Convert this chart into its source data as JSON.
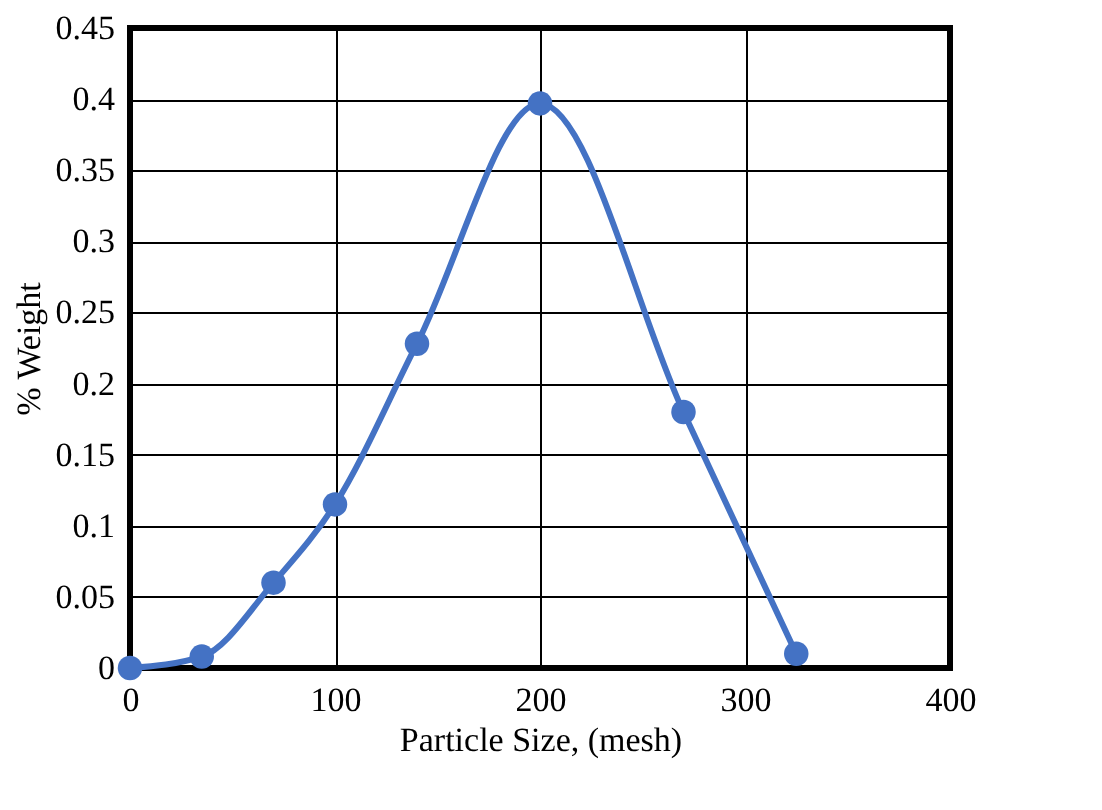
{
  "chart_data": {
    "type": "line",
    "xlabel": "Particle Size, (mesh)",
    "ylabel": "% Weight",
    "x": [
      0,
      35,
      70,
      100,
      140,
      200,
      270,
      325
    ],
    "series": [
      {
        "color": "#4472c4",
        "values": [
          0,
          0.008,
          0.06,
          0.115,
          0.228,
          0.397,
          0.18,
          0.01
        ]
      }
    ],
    "xlim": [
      0,
      400
    ],
    "xticks": [
      0,
      100,
      200,
      300,
      400
    ],
    "ylim": [
      0,
      0.45
    ],
    "yticks": [
      0,
      0.05,
      0.1,
      0.15,
      0.2,
      0.25,
      0.3,
      0.35,
      0.4,
      0.45
    ],
    "grid": true,
    "marker": "circle",
    "line_style": "solid"
  }
}
